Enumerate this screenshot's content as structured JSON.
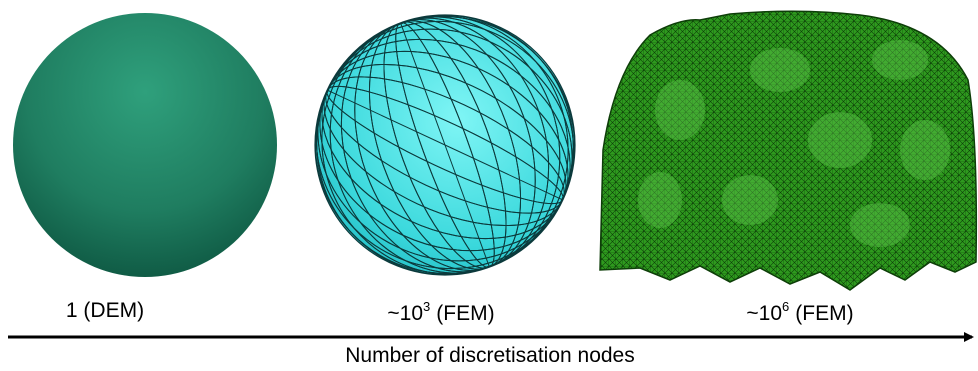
{
  "items": [
    {
      "label": "1 (DEM)"
    },
    {
      "prefix": "~10",
      "exponent": "3",
      "suffix": "(FEM)"
    },
    {
      "prefix": "~10",
      "exponent": "6",
      "suffix": "(FEM)"
    }
  ],
  "axis_label": "Number of discretisation nodes"
}
